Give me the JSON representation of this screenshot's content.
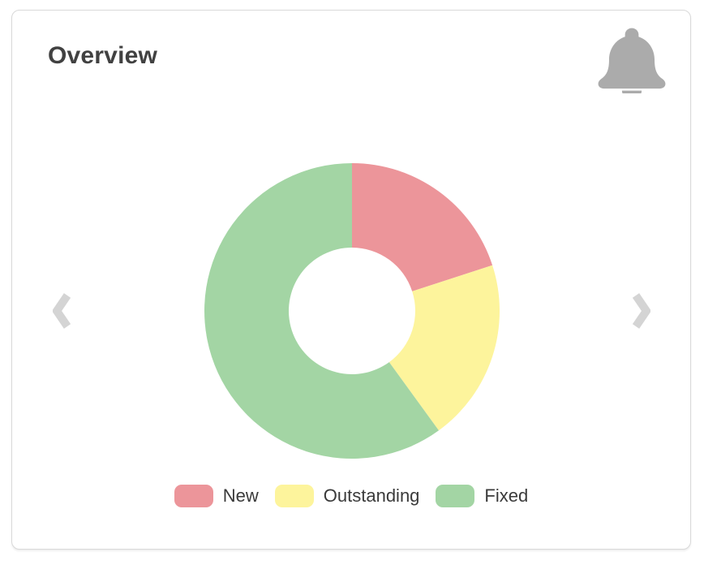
{
  "header": {
    "title": "Overview"
  },
  "colors": {
    "card_background": "#ffffff",
    "card_border": "#d9d9d9",
    "title_text": "#414141",
    "legend_text": "#3a3a3a",
    "bell_icon": "#ababab",
    "chevron_icon": "#d4d4d4"
  },
  "chart_data": {
    "type": "pie",
    "variant": "donut",
    "title": "",
    "categories": [
      "New",
      "Outstanding",
      "Fixed"
    ],
    "values": [
      20,
      20,
      60
    ],
    "colors": [
      "#ec959a",
      "#fdf49c",
      "#a3d5a4"
    ],
    "start_angle_deg": 0,
    "direction": "clockwise",
    "cutout_ratio": 0.43,
    "legend_position": "bottom"
  }
}
